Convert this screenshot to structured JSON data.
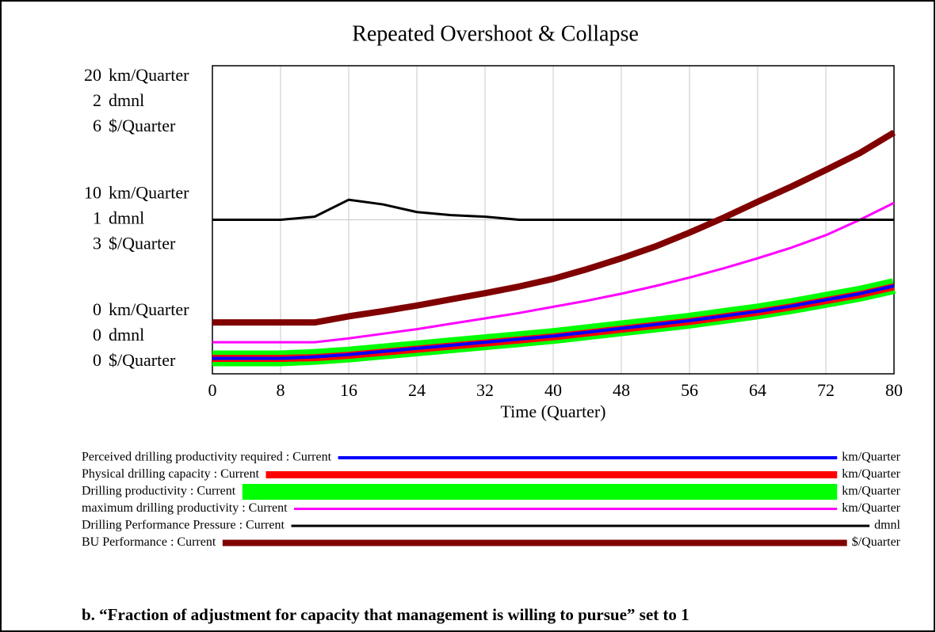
{
  "chart_data": {
    "type": "line",
    "title": "Repeated Overshoot & Collapse",
    "xlabel": "Time (Quarter)",
    "x": [
      0,
      4,
      8,
      12,
      16,
      20,
      24,
      28,
      32,
      36,
      40,
      44,
      48,
      52,
      56,
      60,
      64,
      68,
      72,
      76,
      80
    ],
    "xlim": [
      0,
      80
    ],
    "xticks": [
      0,
      8,
      16,
      24,
      32,
      40,
      48,
      56,
      64,
      72,
      80
    ],
    "ylim": [
      0,
      20
    ],
    "yticks": [
      0,
      10,
      20
    ],
    "ylabel": "km/Quarter",
    "y2lim": [
      0,
      2
    ],
    "y2ticks": [
      0,
      1,
      2
    ],
    "y2label": "dmnl",
    "y3lim": [
      0,
      6
    ],
    "y3ticks": [
      0,
      3,
      6
    ],
    "y3label": "$/Quarter",
    "grid": true,
    "series": [
      {
        "name": "Perceived drilling productivity required : Current",
        "color": "#0000ff",
        "axis": "y",
        "values": [
          1.0,
          1.0,
          1.0,
          1.1,
          1.25,
          1.45,
          1.65,
          1.85,
          2.05,
          2.25,
          2.45,
          2.7,
          2.95,
          3.2,
          3.45,
          3.75,
          4.05,
          4.4,
          4.8,
          5.2,
          5.7
        ]
      },
      {
        "name": "Physical drilling capacity : Current",
        "color": "#ff0000",
        "axis": "y",
        "values": [
          1.0,
          1.0,
          1.0,
          1.05,
          1.2,
          1.4,
          1.6,
          1.8,
          2.0,
          2.2,
          2.4,
          2.65,
          2.9,
          3.15,
          3.4,
          3.7,
          4.0,
          4.35,
          4.75,
          5.15,
          5.65
        ]
      },
      {
        "name": "Drilling productivity : Current",
        "color": "#00ff00",
        "axis": "y",
        "values": [
          1.0,
          1.0,
          1.0,
          1.1,
          1.25,
          1.45,
          1.65,
          1.85,
          2.05,
          2.25,
          2.45,
          2.7,
          2.95,
          3.2,
          3.45,
          3.75,
          4.05,
          4.4,
          4.8,
          5.2,
          5.7
        ]
      },
      {
        "name": "maximum drilling productivity : Current",
        "color": "#ff00ff",
        "axis": "y",
        "values": [
          2.05,
          2.05,
          2.05,
          2.05,
          2.3,
          2.6,
          2.9,
          3.25,
          3.6,
          3.95,
          4.35,
          4.75,
          5.2,
          5.7,
          6.25,
          6.85,
          7.5,
          8.2,
          9.0,
          10.0,
          11.1
        ]
      },
      {
        "name": "Drilling Performance Pressure : Current",
        "color": "#000000",
        "axis": "y2",
        "values": [
          1.0,
          1.0,
          1.0,
          1.02,
          1.13,
          1.1,
          1.05,
          1.03,
          1.02,
          1.0,
          1.0,
          1.0,
          1.0,
          1.0,
          1.0,
          1.0,
          1.0,
          1.0,
          1.0,
          1.0,
          1.0
        ]
      },
      {
        "name": "BU Performance : Current",
        "color": "#800000",
        "axis": "y3",
        "values": [
          1.0,
          1.0,
          1.0,
          1.0,
          1.12,
          1.22,
          1.33,
          1.45,
          1.57,
          1.7,
          1.85,
          2.04,
          2.25,
          2.48,
          2.75,
          3.04,
          3.35,
          3.65,
          3.97,
          4.3,
          4.7
        ]
      }
    ]
  },
  "caption": "b. “Fraction of adjustment for capacity that management is willing to pursue” set to 1"
}
